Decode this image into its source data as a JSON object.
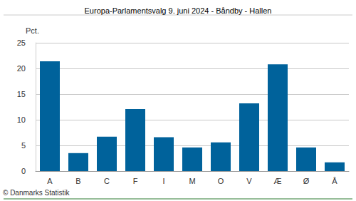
{
  "chart_data": {
    "type": "bar",
    "title": "Europa-Parlamentsvalg 9. juni 2024 - Båndby - Hallen",
    "ylabel": "Pct.",
    "annotation": "© Danmarks Statistik",
    "categories": [
      "A",
      "B",
      "C",
      "F",
      "I",
      "M",
      "O",
      "V",
      "Æ",
      "Ø",
      "Å"
    ],
    "values": [
      21.4,
      3.5,
      6.7,
      12.1,
      6.6,
      4.6,
      5.6,
      13.2,
      20.8,
      4.6,
      1.7
    ],
    "color": "#00629b",
    "ylim": [
      0,
      25
    ],
    "yticks": [
      0,
      5,
      10,
      15,
      20,
      25
    ],
    "grid": true
  }
}
